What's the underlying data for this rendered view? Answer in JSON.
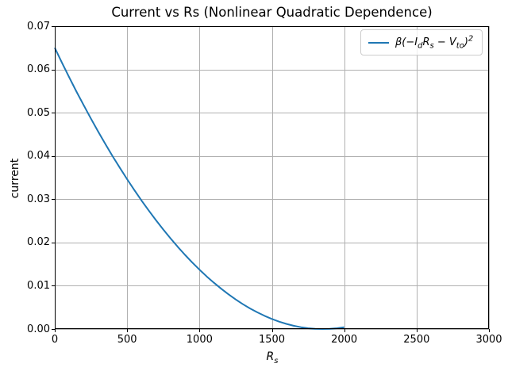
{
  "figure": {
    "background": "#ffffff",
    "text_color": "#000000"
  },
  "chart_data": {
    "type": "line",
    "title": "Current vs Rs (Nonlinear Quadratic Dependence)",
    "xlabel_tex": "R_s",
    "ylabel": "current",
    "xlim": [
      0,
      3000
    ],
    "ylim": [
      0,
      0.07
    ],
    "grid": true,
    "grid_color": "#b0b0b0",
    "frame_color": "#000000",
    "legend": {
      "position": "upper right",
      "items": [
        {
          "label_tex": "β(−I_dR_s − V_{to})^2",
          "color": "#1f77b4"
        }
      ]
    },
    "xticks": {
      "values": [
        0,
        500,
        1000,
        1500,
        2000,
        2500,
        3000
      ],
      "labels": [
        "0",
        "500",
        "1000",
        "1500",
        "2000",
        "2500",
        "3000"
      ]
    },
    "yticks": {
      "values": [
        0,
        0.01,
        0.02,
        0.03,
        0.04,
        0.05,
        0.06,
        0.07
      ],
      "labels": [
        "0.00",
        "0.01",
        "0.02",
        "0.03",
        "0.04",
        "0.05",
        "0.06",
        "0.07"
      ]
    },
    "series": [
      {
        "name_tex": "β(−I_dR_s − V_{to})^2",
        "color": "#1f77b4",
        "line_width": 2,
        "points": [
          [
            0,
            0.065
          ],
          [
            50,
            0.06153
          ],
          [
            100,
            0.05816
          ],
          [
            150,
            0.05489
          ],
          [
            200,
            0.05171
          ],
          [
            250,
            0.04862
          ],
          [
            300,
            0.04563
          ],
          [
            350,
            0.04273
          ],
          [
            400,
            0.03993
          ],
          [
            450,
            0.03723
          ],
          [
            500,
            0.03461
          ],
          [
            550,
            0.0321
          ],
          [
            600,
            0.02967
          ],
          [
            650,
            0.02735
          ],
          [
            700,
            0.02512
          ],
          [
            750,
            0.02298
          ],
          [
            800,
            0.02094
          ],
          [
            850,
            0.01899
          ],
          [
            900,
            0.01714
          ],
          [
            950,
            0.01538
          ],
          [
            1000,
            0.01372
          ],
          [
            1050,
            0.01215
          ],
          [
            1100,
            0.01068
          ],
          [
            1150,
            0.00931
          ],
          [
            1200,
            0.00802
          ],
          [
            1250,
            0.00684
          ],
          [
            1300,
            0.00574
          ],
          [
            1350,
            0.00475
          ],
          [
            1400,
            0.00385
          ],
          [
            1450,
            0.00304
          ],
          [
            1500,
            0.00233
          ],
          [
            1550,
            0.00171
          ],
          [
            1600,
            0.00119
          ],
          [
            1650,
            0.00076
          ],
          [
            1700,
            0.00043
          ],
          [
            1750,
            0.00019
          ],
          [
            1800,
            5e-05
          ],
          [
            1850,
            0.0
          ],
          [
            1900,
            5e-05
          ],
          [
            1950,
            0.00019
          ],
          [
            2000,
            0.00043
          ]
        ]
      }
    ]
  }
}
